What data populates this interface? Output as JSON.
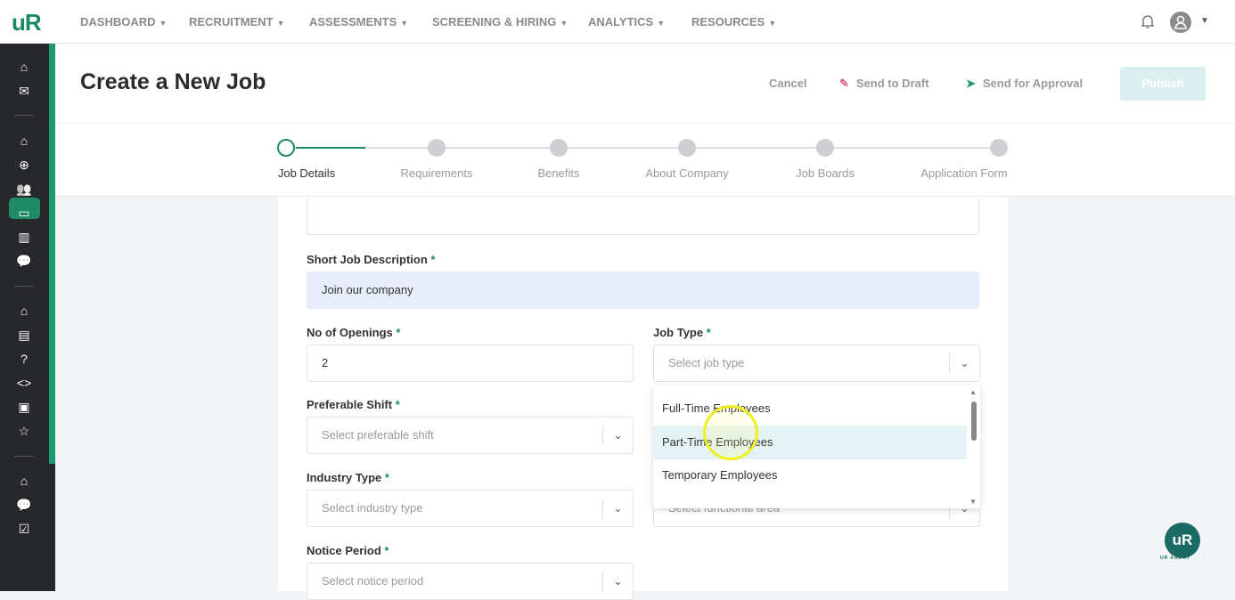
{
  "app": {
    "logo": "uR"
  },
  "nav": {
    "items": [
      {
        "label": "DASHBOARD"
      },
      {
        "label": "RECRUITMENT"
      },
      {
        "label": "ASSESSMENTS"
      },
      {
        "label": "SCREENING & HIRING"
      },
      {
        "label": "ANALYTICS"
      },
      {
        "label": "RESOURCES"
      }
    ]
  },
  "header": {
    "title": "Create a New Job",
    "cancel": "Cancel",
    "draft": "Send to Draft",
    "approval": "Send for Approval",
    "publish": "Publish"
  },
  "steps": [
    {
      "label": "Job Details",
      "active": true
    },
    {
      "label": "Requirements"
    },
    {
      "label": "Benefits"
    },
    {
      "label": "About Company"
    },
    {
      "label": "Job Boards"
    },
    {
      "label": "Application Form"
    }
  ],
  "form": {
    "short_desc": {
      "label": "Short Job Description",
      "value": "Join our company"
    },
    "openings": {
      "label": "No of Openings",
      "value": "2"
    },
    "job_type": {
      "label": "Job Type",
      "placeholder": "Select job type",
      "options": [
        "Full-Time Employees",
        "Part-Time Employees",
        "Temporary Employees"
      ],
      "hovered": "Part-Time Employees"
    },
    "shift": {
      "label": "Preferable Shift",
      "placeholder": "Select preferable shift"
    },
    "industry": {
      "label": "Industry Type",
      "placeholder": "Select industry type"
    },
    "functional": {
      "placeholder": "Select functional area"
    },
    "notice": {
      "label": "Notice Period",
      "placeholder": "Select notice period"
    },
    "required_mark": "*"
  },
  "agent": {
    "label": "uR",
    "caption": "UR AGENT"
  },
  "colors": {
    "brand": "#1f8a66",
    "sidebar": "#27282c",
    "publish_disabled": "#dbeef0"
  }
}
